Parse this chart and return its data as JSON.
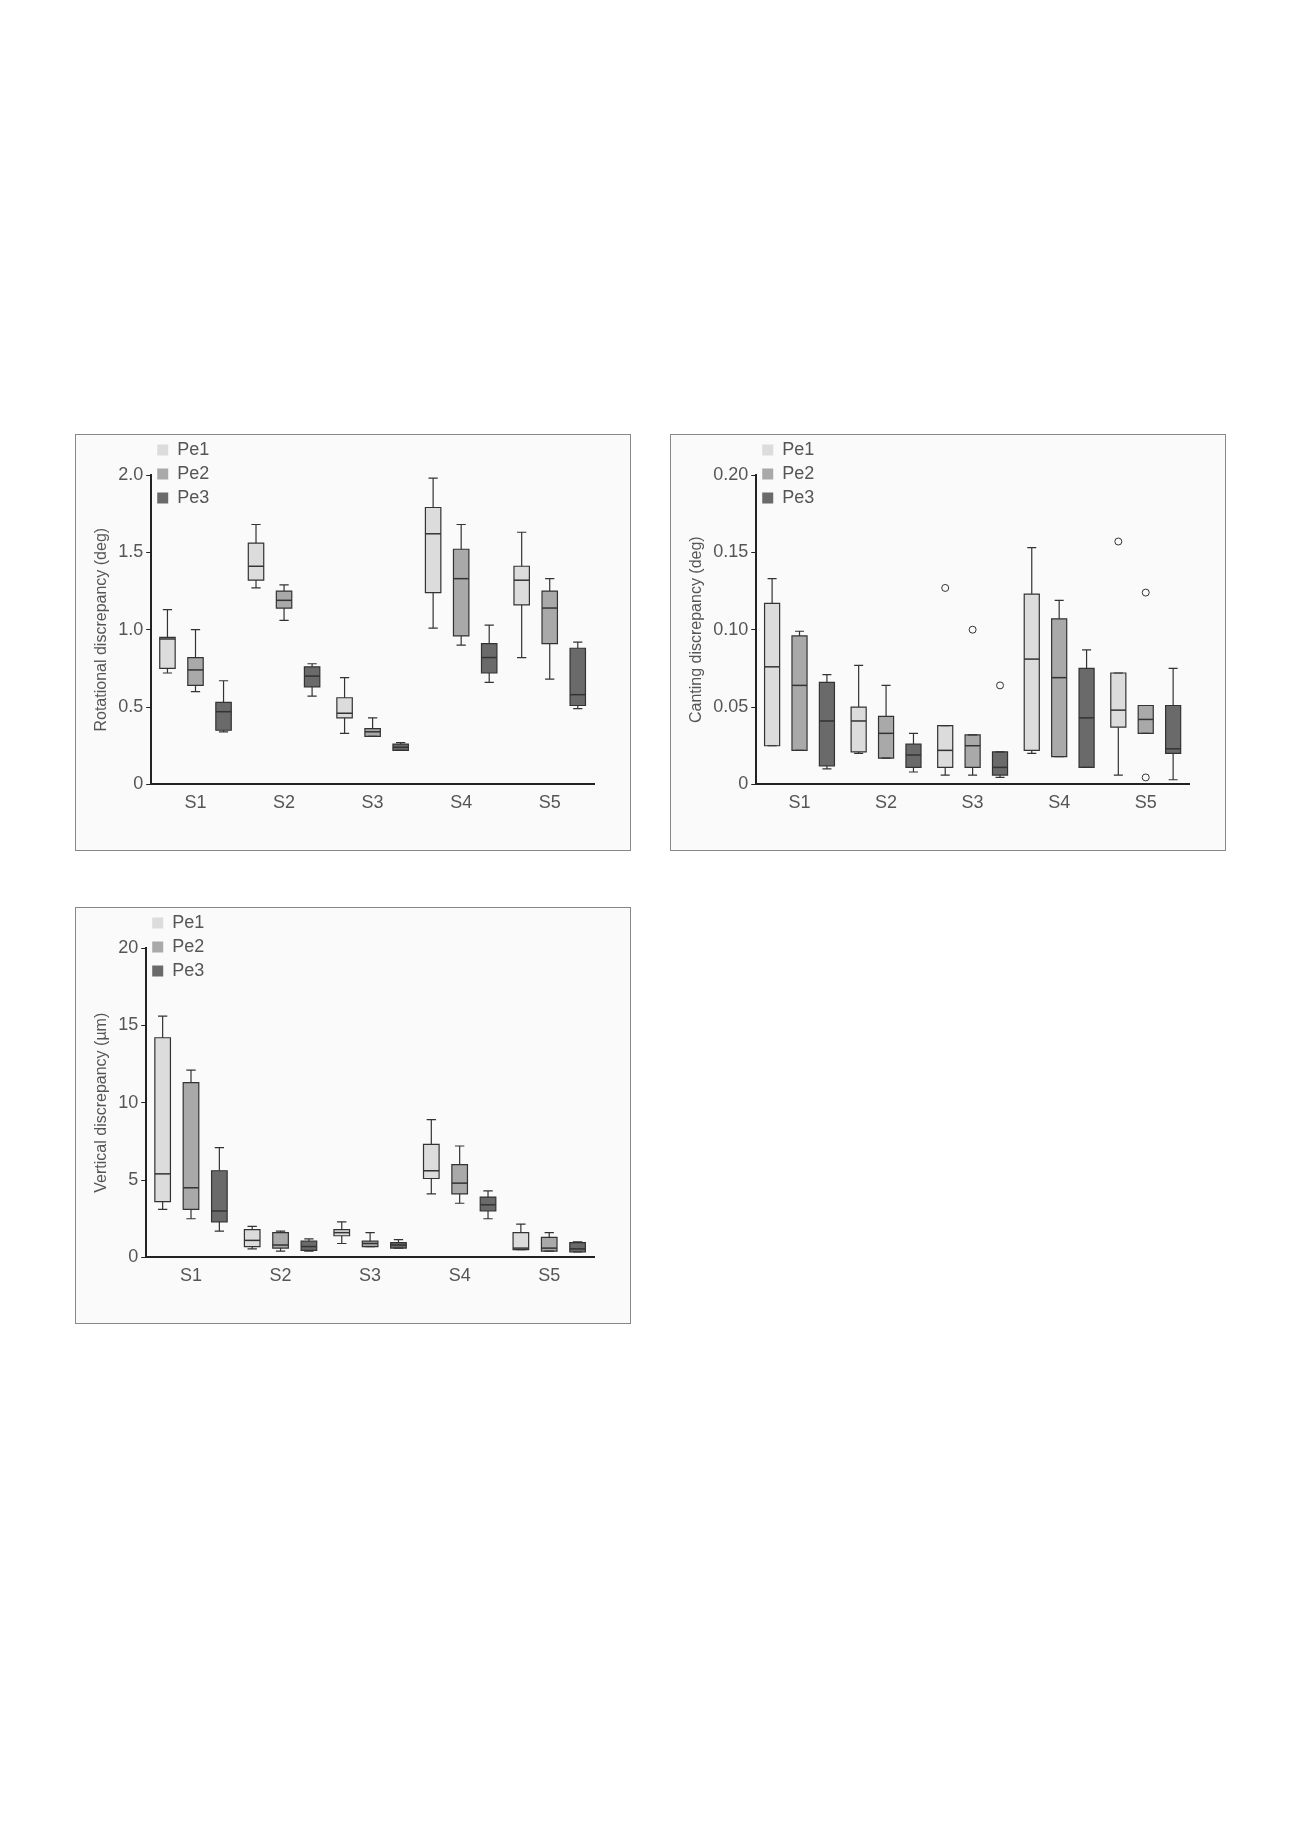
{
  "chart_data": [
    {
      "type": "box",
      "ylabel": "Rotational discrepancy (deg)",
      "categories": [
        "S1",
        "S2",
        "S3",
        "S4",
        "S5"
      ],
      "ylim": [
        0,
        2
      ],
      "yticks": [
        0,
        0.5,
        {
          "value": 1,
          "label": "1.0"
        },
        1.5,
        {
          "value": 2,
          "label": "2.0"
        }
      ],
      "grid": false,
      "legend": "top left",
      "series": [
        {
          "name": "Pe1",
          "color": "#dcdcdc",
          "boxes": [
            {
              "low": 0.72,
              "q1": 0.75,
              "median": 0.94,
              "q3": 0.95,
              "high": 1.13
            },
            {
              "low": 1.27,
              "q1": 1.32,
              "median": 1.41,
              "q3": 1.56,
              "high": 1.68
            },
            {
              "low": 0.33,
              "q1": 0.43,
              "median": 0.46,
              "q3": 0.56,
              "high": 0.69
            },
            {
              "low": 1.01,
              "q1": 1.24,
              "median": 1.62,
              "q3": 1.79,
              "high": 1.98
            },
            {
              "low": 0.82,
              "q1": 1.16,
              "median": 1.32,
              "q3": 1.41,
              "high": 1.63
            }
          ]
        },
        {
          "name": "Pe2",
          "color": "#a9a9a9",
          "boxes": [
            {
              "low": 0.6,
              "q1": 0.64,
              "median": 0.74,
              "q3": 0.82,
              "high": 1.0
            },
            {
              "low": 1.06,
              "q1": 1.14,
              "median": 1.19,
              "q3": 1.25,
              "high": 1.29
            },
            {
              "low": 0.31,
              "q1": 0.31,
              "median": 0.34,
              "q3": 0.36,
              "high": 0.43
            },
            {
              "low": 0.9,
              "q1": 0.96,
              "median": 1.33,
              "q3": 1.52,
              "high": 1.68
            },
            {
              "low": 0.68,
              "q1": 0.91,
              "median": 1.14,
              "q3": 1.25,
              "high": 1.33
            }
          ]
        },
        {
          "name": "Pe3",
          "color": "#6a6a6a",
          "boxes": [
            {
              "low": 0.34,
              "q1": 0.35,
              "median": 0.47,
              "q3": 0.53,
              "high": 0.67
            },
            {
              "low": 0.57,
              "q1": 0.63,
              "median": 0.7,
              "q3": 0.76,
              "high": 0.78
            },
            {
              "low": 0.22,
              "q1": 0.22,
              "median": 0.24,
              "q3": 0.26,
              "high": 0.27
            },
            {
              "low": 0.66,
              "q1": 0.72,
              "median": 0.82,
              "q3": 0.91,
              "high": 1.03
            },
            {
              "low": 0.49,
              "q1": 0.51,
              "median": 0.58,
              "q3": 0.88,
              "high": 0.92
            }
          ]
        }
      ]
    },
    {
      "type": "box",
      "ylabel": "Canting discrepancy (deg)",
      "categories": [
        "S1",
        "S2",
        "S3",
        "S4",
        "S5"
      ],
      "ylim": [
        0,
        0.2
      ],
      "yticks": [
        0,
        0.05,
        {
          "value": 0.1,
          "label": "0.10"
        },
        0.15,
        {
          "value": 0.2,
          "label": "0.20"
        }
      ],
      "grid": false,
      "legend": "top left",
      "series": [
        {
          "name": "Pe1",
          "color": "#dcdcdc",
          "boxes": [
            {
              "low": 0.025,
              "q1": 0.025,
              "median": 0.076,
              "q3": 0.117,
              "high": 0.133
            },
            {
              "low": 0.02,
              "q1": 0.021,
              "median": 0.041,
              "q3": 0.05,
              "high": 0.077
            },
            {
              "low": 0.006,
              "q1": 0.011,
              "median": 0.022,
              "q3": 0.038,
              "high": 0.038,
              "outliers": [
                0.127
              ]
            },
            {
              "low": 0.02,
              "q1": 0.022,
              "median": 0.081,
              "q3": 0.123,
              "high": 0.153
            },
            {
              "low": 0.006,
              "q1": 0.037,
              "median": 0.048,
              "q3": 0.072,
              "high": 0.072,
              "outliers": [
                0.157
              ]
            }
          ]
        },
        {
          "name": "Pe2",
          "color": "#a9a9a9",
          "boxes": [
            {
              "low": 0.022,
              "q1": 0.022,
              "median": 0.064,
              "q3": 0.096,
              "high": 0.099
            },
            {
              "low": 0.017,
              "q1": 0.017,
              "median": 0.033,
              "q3": 0.044,
              "high": 0.064
            },
            {
              "low": 0.006,
              "q1": 0.011,
              "median": 0.025,
              "q3": 0.032,
              "high": 0.032,
              "outliers": [
                0.1
              ]
            },
            {
              "low": 0.018,
              "q1": 0.018,
              "median": 0.069,
              "q3": 0.107,
              "high": 0.119
            },
            {
              "low": 0.033,
              "q1": 0.033,
              "median": 0.042,
              "q3": 0.051,
              "high": 0.051,
              "outliers": [
                0.124,
                0.0045
              ]
            }
          ]
        },
        {
          "name": "Pe3",
          "color": "#6a6a6a",
          "boxes": [
            {
              "low": 0.01,
              "q1": 0.012,
              "median": 0.041,
              "q3": 0.066,
              "high": 0.071
            },
            {
              "low": 0.008,
              "q1": 0.011,
              "median": 0.019,
              "q3": 0.026,
              "high": 0.033
            },
            {
              "low": 0.0045,
              "q1": 0.006,
              "median": 0.011,
              "q3": 0.021,
              "high": 0.021,
              "outliers": [
                0.064
              ]
            },
            {
              "low": 0.011,
              "q1": 0.011,
              "median": 0.043,
              "q3": 0.075,
              "high": 0.087
            },
            {
              "low": 0.003,
              "q1": 0.02,
              "median": 0.023,
              "q3": 0.051,
              "high": 0.075
            }
          ]
        }
      ]
    },
    {
      "type": "box",
      "ylabel": "Vertical discrepancy (µm)",
      "categories": [
        "S1",
        "S2",
        "S3",
        "S4",
        "S5"
      ],
      "ylim": [
        0,
        20
      ],
      "yticks": [
        0,
        5,
        10,
        15,
        20
      ],
      "grid": false,
      "legend": "top left",
      "series": [
        {
          "name": "Pe1",
          "color": "#dcdcdc",
          "boxes": [
            {
              "low": 3.1,
              "q1": 3.6,
              "median": 5.4,
              "q3": 14.2,
              "high": 15.6
            },
            {
              "low": 0.55,
              "q1": 0.7,
              "median": 1.1,
              "q3": 1.8,
              "high": 2.0
            },
            {
              "low": 0.9,
              "q1": 1.4,
              "median": 1.6,
              "q3": 1.8,
              "high": 2.3
            },
            {
              "low": 4.1,
              "q1": 5.1,
              "median": 5.6,
              "q3": 7.3,
              "high": 8.9
            },
            {
              "low": 0.5,
              "q1": 0.5,
              "median": 0.6,
              "q3": 1.6,
              "high": 2.15
            }
          ]
        },
        {
          "name": "Pe2",
          "color": "#a9a9a9",
          "boxes": [
            {
              "low": 2.5,
              "q1": 3.1,
              "median": 4.5,
              "q3": 11.3,
              "high": 12.1
            },
            {
              "low": 0.4,
              "q1": 0.6,
              "median": 0.8,
              "q3": 1.6,
              "high": 1.7
            },
            {
              "low": 0.7,
              "q1": 0.7,
              "median": 0.9,
              "q3": 1.05,
              "high": 1.6
            },
            {
              "low": 3.5,
              "q1": 4.1,
              "median": 4.8,
              "q3": 6.0,
              "high": 7.2
            },
            {
              "low": 0.4,
              "q1": 0.4,
              "median": 0.6,
              "q3": 1.3,
              "high": 1.6
            }
          ]
        },
        {
          "name": "Pe3",
          "color": "#6a6a6a",
          "boxes": [
            {
              "low": 1.7,
              "q1": 2.3,
              "median": 3.0,
              "q3": 5.6,
              "high": 7.1
            },
            {
              "low": 0.4,
              "q1": 0.45,
              "median": 0.7,
              "q3": 1.05,
              "high": 1.2
            },
            {
              "low": 0.6,
              "q1": 0.6,
              "median": 0.8,
              "q3": 0.95,
              "high": 1.15
            },
            {
              "low": 2.5,
              "q1": 3.0,
              "median": 3.4,
              "q3": 3.9,
              "high": 4.3
            },
            {
              "low": 0.35,
              "q1": 0.35,
              "median": 0.55,
              "q3": 0.95,
              "high": 1.0
            }
          ]
        }
      ]
    }
  ]
}
